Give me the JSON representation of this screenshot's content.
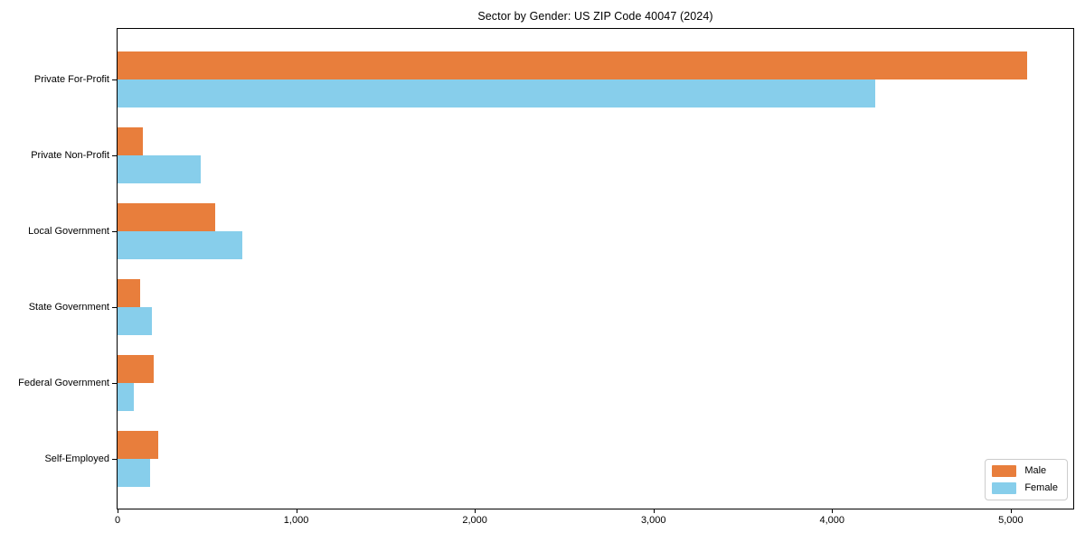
{
  "chart_data": {
    "type": "bar",
    "orientation": "horizontal",
    "title": "Sector by Gender: US ZIP Code 40047 (2024)",
    "categories": [
      "Private For-Profit",
      "Private Non-Profit",
      "Local Government",
      "State Government",
      "Federal Government",
      "Self-Employed"
    ],
    "series": [
      {
        "name": "Male",
        "color": "#E87E3C",
        "values": [
          5090,
          140,
          545,
          125,
          200,
          230
        ]
      },
      {
        "name": "Female",
        "color": "#87CEEB",
        "values": [
          4240,
          465,
          700,
          190,
          90,
          180
        ]
      }
    ],
    "xlabel": "",
    "ylabel": "",
    "xlim": [
      0,
      5350
    ],
    "xticks": [
      0,
      1000,
      2000,
      3000,
      4000,
      5000
    ],
    "xtick_labels": [
      "0",
      "1,000",
      "2,000",
      "3,000",
      "4,000",
      "5,000"
    ],
    "grid": false,
    "legend": {
      "position": "lower-right",
      "entries": [
        "Male",
        "Female"
      ]
    },
    "frame_color": "#000000",
    "background_color": "#FFFFFF"
  }
}
